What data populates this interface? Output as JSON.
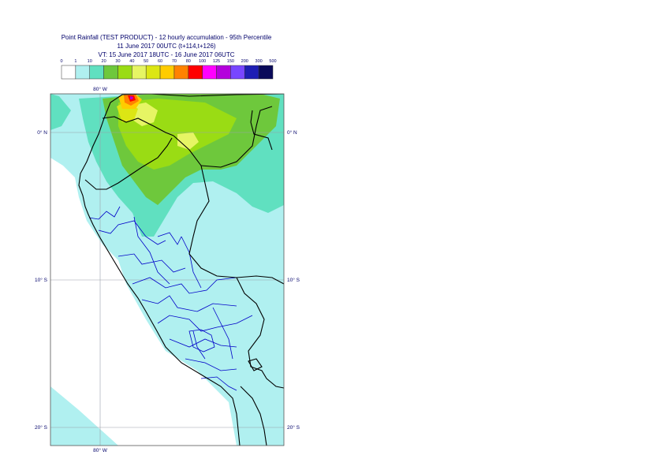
{
  "header": {
    "title_line1": "Point Rainfall (TEST PRODUCT) - 12 hourly accumulation - 95th Percentile",
    "title_line2": "11 June 2017 00UTC (t+114,t+126)",
    "title_line3": "VT: 15 June 2017 18UTC - 16 June 2017 06UTC"
  },
  "legend": {
    "labels": [
      "0",
      "1",
      "10",
      "20",
      "30",
      "40",
      "50",
      "60",
      "70",
      "80",
      "100",
      "125",
      "150",
      "200",
      "300",
      "500"
    ],
    "colors": [
      "#ffffff",
      "#b0f0f0",
      "#60e0c0",
      "#6ec83c",
      "#9adc14",
      "#e6f564",
      "#dce614",
      "#ffcc00",
      "#ff8200",
      "#ff0000",
      "#ff00ff",
      "#b400dc",
      "#7846ff",
      "#1e1eb4",
      "#0a0a5a"
    ]
  },
  "map": {
    "lon_label_top": "80° W",
    "lon_label_bottom": "80° W",
    "lat_labels_left": [
      "0° N",
      "10° S",
      "20° S"
    ],
    "lat_labels_right": [
      "0° N",
      "10° S",
      "20° S"
    ],
    "colors": {
      "land_border": "#000000",
      "admin_border": "#0000c8",
      "grid": "#9aa0aa"
    }
  }
}
